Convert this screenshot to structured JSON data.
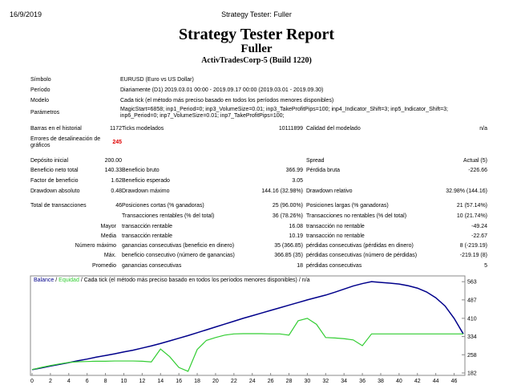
{
  "header": {
    "date": "16/9/2019",
    "window_title": "Strategy Tester: Fuller",
    "title": "Strategy Tester Report",
    "subtitle": "Fuller",
    "server": "ActivTradesCorp-5 (Build 1220)"
  },
  "info": [
    [
      "Símbolo",
      "EURUSD (Euro vs US Dollar)"
    ],
    [
      "Período",
      "Diariamente (D1) 2019.03.01 00:00 - 2019.09.17 00:00 (2019.03.01 - 2019.09.30)"
    ],
    [
      "Modelo",
      "Cada tick (el método más preciso basado en todos los períodos menores disponibles)"
    ],
    [
      "Parámetros",
      "MagicStart=6858; inp1_Period=0; inp3_VolumeSize=0.01; inp3_TakeProfitPips=100; inp4_Indicator_Shift=3; inp5_Indicator_Shift=3; inp6_Period=0; inp7_VolumeSize=0.01; inp7_TakeProfitPips=100;"
    ]
  ],
  "table": {
    "rows": [
      [
        "Barras en el historial",
        "1172",
        "Ticks modelados",
        "10111899",
        "Calidad del modelado",
        "n/a"
      ],
      [
        "Errores de desalineación de gráficos",
        "245",
        null,
        null,
        null,
        null
      ],
      [
        "Depósito inicial",
        "200.00",
        null,
        null,
        "Spread",
        "Actual (5)"
      ],
      [
        "Beneficio neto total",
        "140.33",
        "Beneficio bruto",
        "366.99",
        "Pérdida bruta",
        "-226.66"
      ],
      [
        "Factor de beneficio",
        "1.62",
        "Beneficio esperado",
        "3.05",
        null,
        null
      ],
      [
        "Drawdown absoluto",
        "0.48",
        "Drawdown máximo",
        "144.16 (32.98%)",
        "Drawdown relativo",
        "32.98% (144.16)"
      ],
      [
        "Total de transacciones",
        "46",
        "Posiciones cortas (% ganadoras)",
        "25 (96.00%)",
        "Posiciones largas (% ganadoras)",
        "21 (57.14%)"
      ],
      [
        null,
        null,
        "Transacciones rentables (% del total)",
        "36 (78.26%)",
        "Transacciones no rentables (% del total)",
        "10 (21.74%)"
      ],
      [
        "Mayor",
        null,
        "transacción rentable",
        "16.08",
        "transacción no rentable",
        "-49.24"
      ],
      [
        "Media",
        null,
        "transacción rentable",
        "10.19",
        "transacción no rentable",
        "-22.67"
      ],
      [
        "Número máximo",
        null,
        "ganancias consecutivas (beneficio en dinero)",
        "35 (366.85)",
        "pérdidas consecutivas (pérdidas en dinero)",
        "8 (-219.19)"
      ],
      [
        "Máx.",
        null,
        "beneficio consecutivo (número de ganancias)",
        "366.85 (35)",
        "pérdidas consecutivas (número de pérdidas)",
        "-219.19 (8)"
      ],
      [
        "Promedio",
        null,
        "ganancias consecutivas",
        "18",
        "pérdidas consecutivas",
        "5"
      ]
    ]
  },
  "chart_data": {
    "type": "line",
    "legend_separator": "/",
    "model": "Cada tick (el método más preciso basado en todos los períodos menores disponibles)",
    "quality": "n/a",
    "x": [
      0,
      1,
      2,
      3,
      4,
      5,
      6,
      7,
      8,
      9,
      10,
      11,
      12,
      13,
      14,
      15,
      16,
      17,
      18,
      19,
      20,
      21,
      22,
      23,
      24,
      25,
      26,
      27,
      28,
      29,
      30,
      31,
      32,
      33,
      34,
      35,
      36,
      37,
      38,
      39,
      40,
      41,
      42,
      43,
      44,
      45,
      46,
      47
    ],
    "series": [
      {
        "name": "Balance",
        "color": "#00008b",
        "values": [
          196,
          203,
          211,
          218,
          225,
          233,
          240,
          248,
          255,
          262,
          270,
          277,
          286,
          295,
          305,
          316,
          327,
          338,
          350,
          362,
          374,
          386,
          398,
          410,
          421,
          432,
          443,
          454,
          465,
          476,
          487,
          497,
          507,
          519,
          532,
          545,
          555,
          563,
          560,
          557,
          553,
          546,
          536,
          520,
          496,
          462,
          410,
          345
        ]
      },
      {
        "name": "Equidad",
        "color": "#32cd32",
        "values": [
          196,
          205,
          213,
          220,
          226,
          229,
          230,
          231,
          231,
          232,
          232,
          232,
          231,
          228,
          282,
          250,
          205,
          189,
          280,
          318,
          330,
          340,
          345,
          346,
          346,
          346,
          345,
          345,
          340,
          400,
          410,
          385,
          330,
          328,
          325,
          320,
          296,
          345,
          345,
          345,
          345,
          345,
          345,
          345,
          345,
          345,
          345,
          345
        ]
      }
    ],
    "xlim": [
      0,
      47
    ],
    "xticks": [
      0,
      2,
      4,
      6,
      8,
      10,
      12,
      14,
      16,
      18,
      20,
      22,
      24,
      26,
      28,
      30,
      32,
      34,
      36,
      38,
      40,
      42,
      44,
      46
    ],
    "ylim": [
      172,
      587
    ],
    "yticks": [
      182,
      258,
      334,
      410,
      487,
      563
    ]
  }
}
